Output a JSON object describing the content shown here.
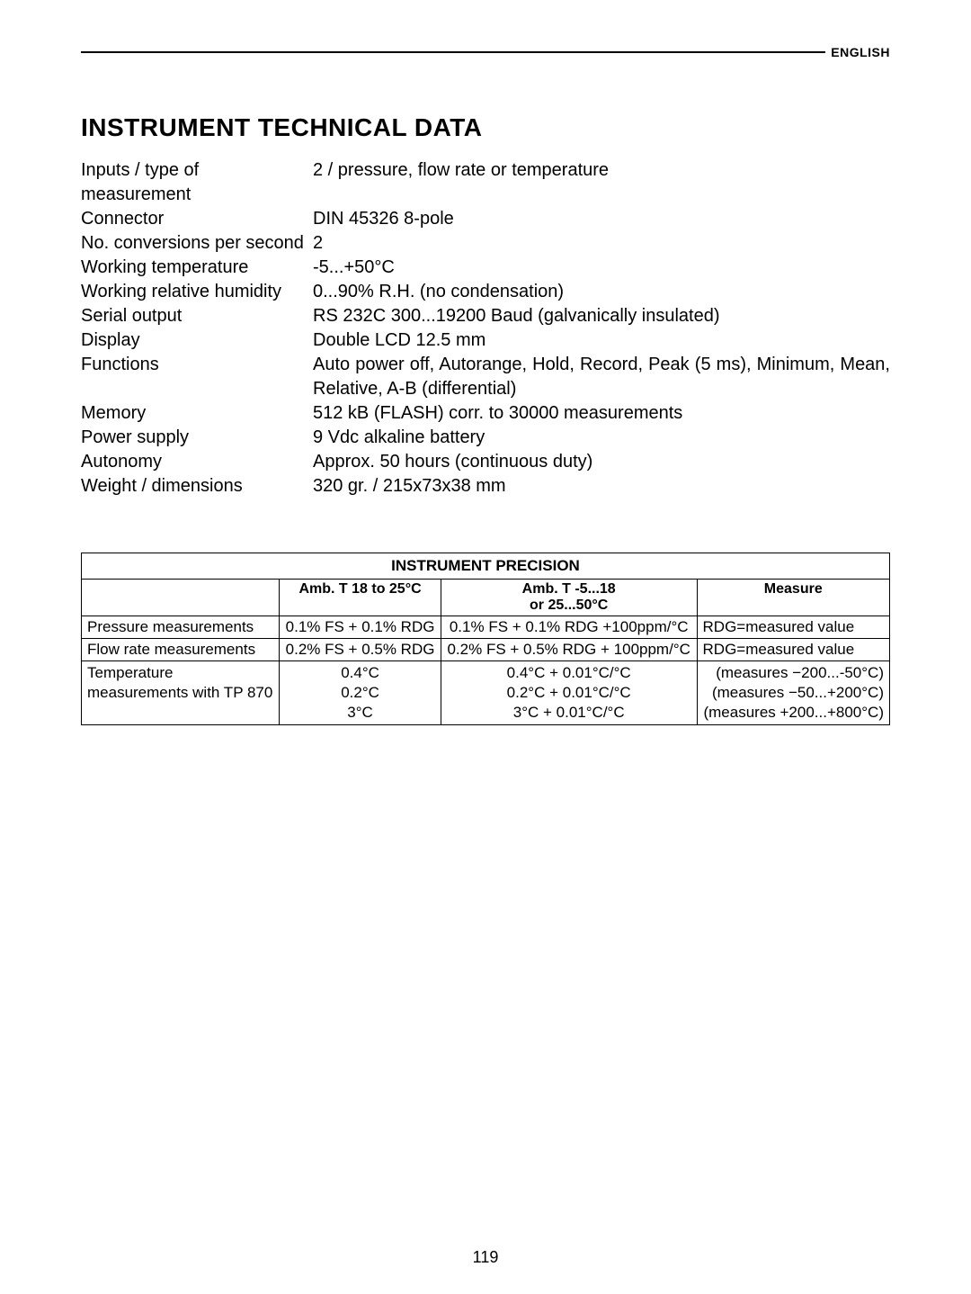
{
  "header": {
    "language": "ENGLISH"
  },
  "title": "INSTRUMENT TECHNICAL DATA",
  "specs": [
    {
      "label": "Inputs / type of measurement",
      "value": "2 / pressure, flow rate or temperature"
    },
    {
      "label": "Connector",
      "value": "DIN 45326 8-pole"
    },
    {
      "label": "No. conversions per second",
      "value": "2"
    },
    {
      "label": "Working temperature",
      "value": "-5...+50°C"
    },
    {
      "label": "Working relative humidity",
      "value": "0...90% R.H. (no condensation)"
    },
    {
      "label": "Serial output",
      "value": "RS 232C 300...19200 Baud (galvanically insulated)"
    },
    {
      "label": "Display",
      "value": "Double LCD 12.5 mm"
    },
    {
      "label": "Functions",
      "value": "Auto power off, Autorange, Hold, Record, Peak (5 ms), Minimum, Mean, Relative, A-B (differential)"
    },
    {
      "label": "Memory",
      "value": "512 kB (FLASH) corr. to 30000 measurements"
    },
    {
      "label": "Power supply",
      "value": "9 Vdc alkaline battery"
    },
    {
      "label": "Autonomy",
      "value": "Approx. 50 hours (continuous duty)"
    },
    {
      "label": "Weight / dimensions",
      "value": "320 gr. / 215x73x38 mm"
    }
  ],
  "precision_table": {
    "title": "INSTRUMENT PRECISION",
    "headers": {
      "col1": "",
      "col2": "Amb. T 18 to 25°C",
      "col3_line1": "Amb. T -5...18",
      "col3_line2": "or 25...50°C",
      "col4": "Measure"
    },
    "rows": [
      {
        "c1": "Pressure measurements",
        "c2": "0.1% FS + 0.1% RDG",
        "c3": "0.1% FS + 0.1% RDG +100ppm/°C",
        "c4": "RDG=measured value"
      },
      {
        "c1": "Flow rate measurements",
        "c2": "0.2% FS + 0.5% RDG",
        "c3": "0.2% FS + 0.5% RDG + 100ppm/°C",
        "c4": "RDG=measured value"
      },
      {
        "c1_line1": "Temperature",
        "c1_line2": "measurements with TP 870",
        "c2_line1": "0.4°C",
        "c2_line2": "0.2°C",
        "c2_line3": "3°C",
        "c3_line1": "0.4°C + 0.01°C/°C",
        "c3_line2": "0.2°C + 0.01°C/°C",
        "c3_line3": "3°C + 0.01°C/°C",
        "c4_line1": "(measures −200...-50°C)",
        "c4_line2": "(measures −50...+200°C)",
        "c4_line3": "(measures +200...+800°C)"
      }
    ]
  },
  "page_number": "119"
}
